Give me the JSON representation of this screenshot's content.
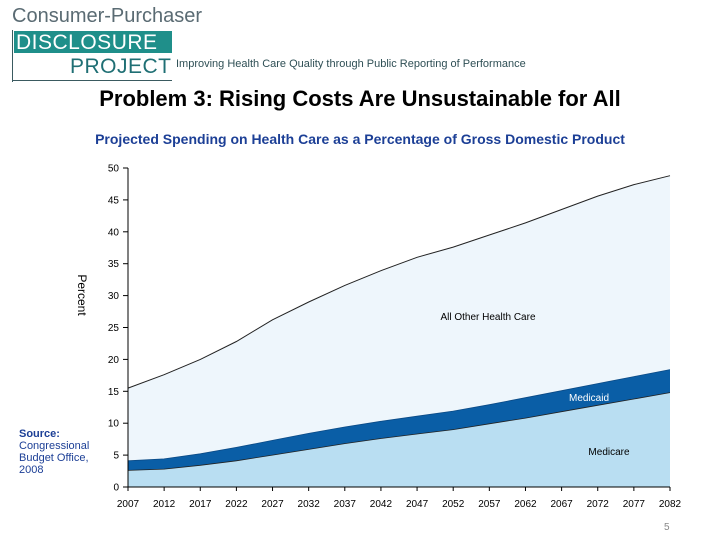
{
  "header": {
    "brand_line1": "Consumer-Purchaser",
    "brand_line2": "DISCLOSURE",
    "brand_line3": "PROJECT",
    "tagline": "Improving Health Care Quality through Public Reporting of Performance"
  },
  "slide_title": "Problem 3: Rising Costs Are Unsustainable for All",
  "source": {
    "label": "Source:",
    "text": "Congressional Budget Office, 2008"
  },
  "page_number": "5",
  "colors": {
    "medicare": "#b9def2",
    "medicaid": "#0a5ea6",
    "all_other": "#eef6fc",
    "title": "#1c3f96",
    "brand": "#1f8f8a"
  },
  "chart_data": {
    "type": "area",
    "stacked": true,
    "title": "Projected Spending on Health Care as a Percentage of Gross Domestic Product",
    "xlabel": "",
    "ylabel": "Percent",
    "ylim": [
      0,
      50
    ],
    "yticks": [
      0,
      5,
      10,
      15,
      20,
      25,
      30,
      35,
      40,
      45,
      50
    ],
    "xlim": [
      2007,
      2082
    ],
    "xticks": [
      "2007",
      "2012",
      "2017",
      "2022",
      "2027",
      "2032",
      "2037",
      "2042",
      "2047",
      "2052",
      "2057",
      "2062",
      "2067",
      "2072",
      "2077",
      "2082"
    ],
    "x": [
      2007,
      2012,
      2017,
      2022,
      2027,
      2032,
      2037,
      2042,
      2047,
      2052,
      2057,
      2062,
      2067,
      2072,
      2077,
      2082
    ],
    "series": [
      {
        "name": "Medicare",
        "values": [
          2.6,
          2.8,
          3.4,
          4.1,
          5.0,
          5.9,
          6.8,
          7.6,
          8.3,
          9.0,
          9.9,
          10.8,
          11.8,
          12.8,
          13.8,
          14.8
        ]
      },
      {
        "name": "Medicaid",
        "values": [
          1.5,
          1.6,
          1.8,
          2.1,
          2.3,
          2.5,
          2.6,
          2.7,
          2.8,
          2.9,
          3.0,
          3.2,
          3.3,
          3.4,
          3.5,
          3.6
        ]
      },
      {
        "name": "All Other Health Care",
        "values": [
          11.4,
          13.2,
          14.8,
          16.6,
          18.9,
          20.6,
          22.2,
          23.6,
          24.9,
          25.7,
          26.6,
          27.4,
          28.4,
          29.4,
          30.1,
          30.4
        ]
      }
    ],
    "grid": false,
    "legend": "none"
  }
}
